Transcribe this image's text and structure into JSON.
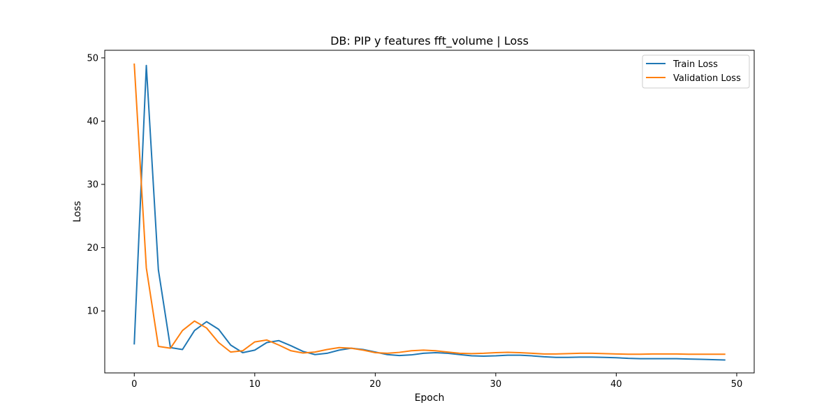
{
  "chart_data": {
    "type": "line",
    "title": "DB: PIP y features fft_volume | Loss",
    "xlabel": "Epoch",
    "ylabel": "Loss",
    "xlim": [
      -2.45,
      51.45
    ],
    "ylim": [
      0.2,
      51.2
    ],
    "xticks": [
      0,
      10,
      20,
      30,
      40,
      50
    ],
    "yticks": [
      10,
      20,
      30,
      40,
      50
    ],
    "grid": false,
    "legend_position": "upper right",
    "x": [
      0,
      1,
      2,
      3,
      4,
      5,
      6,
      7,
      8,
      9,
      10,
      11,
      12,
      13,
      14,
      15,
      16,
      17,
      18,
      19,
      20,
      21,
      22,
      23,
      24,
      25,
      26,
      27,
      28,
      29,
      30,
      31,
      32,
      33,
      34,
      35,
      36,
      37,
      38,
      39,
      40,
      41,
      42,
      43,
      44,
      45,
      46,
      47,
      48,
      49
    ],
    "series": [
      {
        "name": "Train Loss",
        "color": "#1f77b4",
        "values": [
          4.8,
          48.8,
          16.5,
          4.2,
          3.9,
          6.9,
          8.3,
          7.1,
          4.6,
          3.4,
          3.8,
          5.0,
          5.3,
          4.5,
          3.6,
          3.1,
          3.3,
          3.8,
          4.1,
          3.9,
          3.5,
          3.1,
          2.95,
          3.05,
          3.3,
          3.4,
          3.3,
          3.1,
          2.9,
          2.85,
          2.9,
          3.0,
          3.0,
          2.9,
          2.75,
          2.65,
          2.65,
          2.7,
          2.7,
          2.65,
          2.6,
          2.5,
          2.45,
          2.45,
          2.45,
          2.45,
          2.4,
          2.35,
          2.3,
          2.25
        ]
      },
      {
        "name": "Validation Loss",
        "color": "#ff7f0e",
        "values": [
          49.0,
          16.8,
          4.4,
          4.1,
          6.9,
          8.4,
          7.3,
          5.0,
          3.5,
          3.7,
          5.1,
          5.4,
          4.6,
          3.7,
          3.35,
          3.5,
          3.9,
          4.2,
          4.1,
          3.8,
          3.4,
          3.3,
          3.45,
          3.7,
          3.8,
          3.7,
          3.5,
          3.3,
          3.25,
          3.3,
          3.4,
          3.45,
          3.4,
          3.3,
          3.2,
          3.2,
          3.25,
          3.3,
          3.3,
          3.25,
          3.2,
          3.15,
          3.15,
          3.2,
          3.2,
          3.2,
          3.15,
          3.15,
          3.15,
          3.15
        ]
      }
    ]
  }
}
